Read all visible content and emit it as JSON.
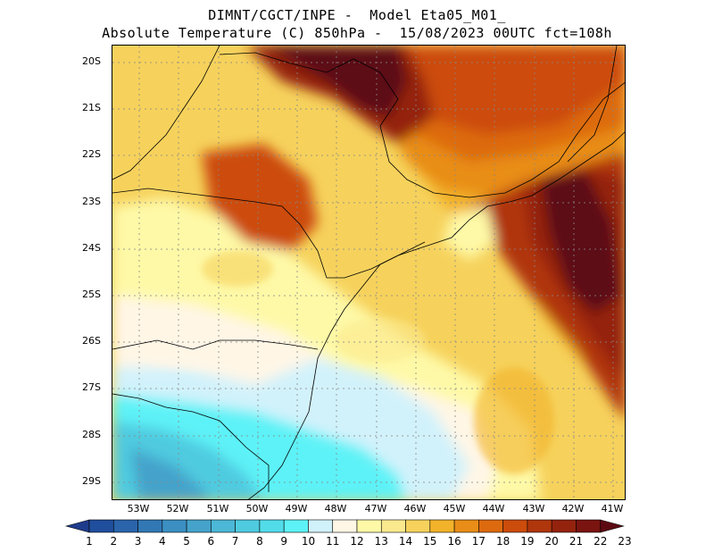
{
  "title": {
    "line1": "DIMNT/CGCT/INPE -  Model Eta05_M01_",
    "line2": "Absolute Temperature (C) 850hPa -  15/08/2023 00UTC fct=108h"
  },
  "variable": "Absolute Temperature (C) 850hPa",
  "lat_labels": [
    "20S",
    "21S",
    "22S",
    "23S",
    "24S",
    "25S",
    "26S",
    "27S",
    "28S",
    "29S"
  ],
  "lon_labels": [
    "53W",
    "52W",
    "51W",
    "50W",
    "49W",
    "48W",
    "47W",
    "46W",
    "45W",
    "44W",
    "43W",
    "42W",
    "41W"
  ],
  "colorbar": {
    "labels": [
      "1",
      "2",
      "3",
      "4",
      "5",
      "6",
      "7",
      "8",
      "9",
      "10",
      "11",
      "12",
      "13",
      "14",
      "15",
      "16",
      "17",
      "18",
      "19",
      "20",
      "21",
      "22",
      "23"
    ],
    "colors": [
      "#1e3c8c",
      "#1f4e9c",
      "#2a64ab",
      "#3178b5",
      "#3b8fc2",
      "#45a3cb",
      "#4cb7d6",
      "#4fcbe0",
      "#52dcea",
      "#5df2f7",
      "#d2f2fb",
      "#fff6e6",
      "#fef9a7",
      "#fbe98e",
      "#f6d25c",
      "#f2b22a",
      "#e88d17",
      "#dd6a0e",
      "#cc4c0b",
      "#b0360c",
      "#94230e",
      "#7a1410",
      "#5c0912"
    ]
  },
  "chart_data": {
    "type": "heatmap",
    "title": "Absolute Temperature (C) 850hPa",
    "units": "C",
    "lon_range": [
      -53.7,
      -40.6
    ],
    "lat_range": [
      -29.5,
      -19.8
    ],
    "levels": [
      1,
      2,
      3,
      4,
      5,
      6,
      7,
      8,
      9,
      10,
      11,
      12,
      13,
      14,
      15,
      16,
      17,
      18,
      19,
      20,
      21,
      22,
      23
    ],
    "regions": [
      {
        "name": "south-west cold region",
        "value": 9
      },
      {
        "name": "south coastal cool region",
        "value": 11
      },
      {
        "name": "central warm region",
        "value": 14
      },
      {
        "name": "north hot region",
        "value": 19
      },
      {
        "name": "maximum north-central",
        "value": 22
      },
      {
        "name": "east offshore maximum",
        "value": 23
      }
    ]
  }
}
